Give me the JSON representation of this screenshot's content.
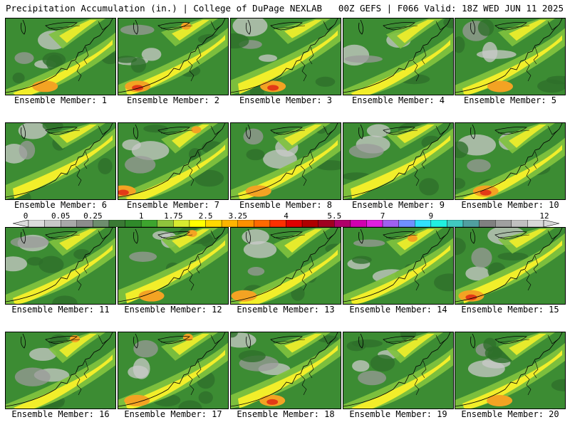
{
  "header": {
    "left_title": "Precipitation Accumulation (in.) | College of DuPage NEXLAB",
    "right_title": "00Z GEFS | F066 Valid: 18Z WED JUN 11 2025"
  },
  "panels": [
    {
      "label": "Ensemble Member: 1"
    },
    {
      "label": "Ensemble Member: 2"
    },
    {
      "label": "Ensemble Member: 3"
    },
    {
      "label": "Ensemble Member: 4"
    },
    {
      "label": "Ensemble Member: 5"
    },
    {
      "label": "Ensemble Member: 6"
    },
    {
      "label": "Ensemble Member: 7"
    },
    {
      "label": "Ensemble Member: 8"
    },
    {
      "label": "Ensemble Member: 9"
    },
    {
      "label": "Ensemble Member: 10"
    },
    {
      "label": "Ensemble Member: 11"
    },
    {
      "label": "Ensemble Member: 12"
    },
    {
      "label": "Ensemble Member: 13"
    },
    {
      "label": "Ensemble Member: 14"
    },
    {
      "label": "Ensemble Member: 15"
    },
    {
      "label": "Ensemble Member: 16"
    },
    {
      "label": "Ensemble Member: 17"
    },
    {
      "label": "Ensemble Member: 18"
    },
    {
      "label": "Ensemble Member: 19"
    },
    {
      "label": "Ensemble Member: 20"
    }
  ],
  "colorbar": {
    "tick_labels": [
      "0",
      "0.05",
      "0.25",
      "1",
      "1.75",
      "2.5",
      "3.25",
      "4",
      "5.5",
      "7",
      "9",
      "12"
    ],
    "colors": [
      "#dcdcdc",
      "#c8c8c8",
      "#a8a8a8",
      "#8c8c8c",
      "#6e8e6e",
      "#3a7a34",
      "#2f8a2a",
      "#3da52e",
      "#8fc43c",
      "#d8ea30",
      "#ffff00",
      "#ffd800",
      "#ffb400",
      "#ff9000",
      "#ff6a00",
      "#ff3000",
      "#e00000",
      "#b00000",
      "#a00020",
      "#b0006a",
      "#d000b0",
      "#e020e0",
      "#a060f0",
      "#7090ff",
      "#30e0ff",
      "#20f0e0",
      "#40c8c0",
      "#50a0a0",
      "#808080",
      "#a0a0a0",
      "#c0c0c0",
      "#d8d8d8"
    ]
  },
  "map_colors": {
    "base": "#3c8c33",
    "dark": "#2e6f2a",
    "light_green": "#7fc23e",
    "yellow": "#f2ee2a",
    "orange": "#f3a323",
    "red": "#e23a17",
    "grey": "#9a9a9a",
    "light_grey": "#c9c9c9"
  }
}
